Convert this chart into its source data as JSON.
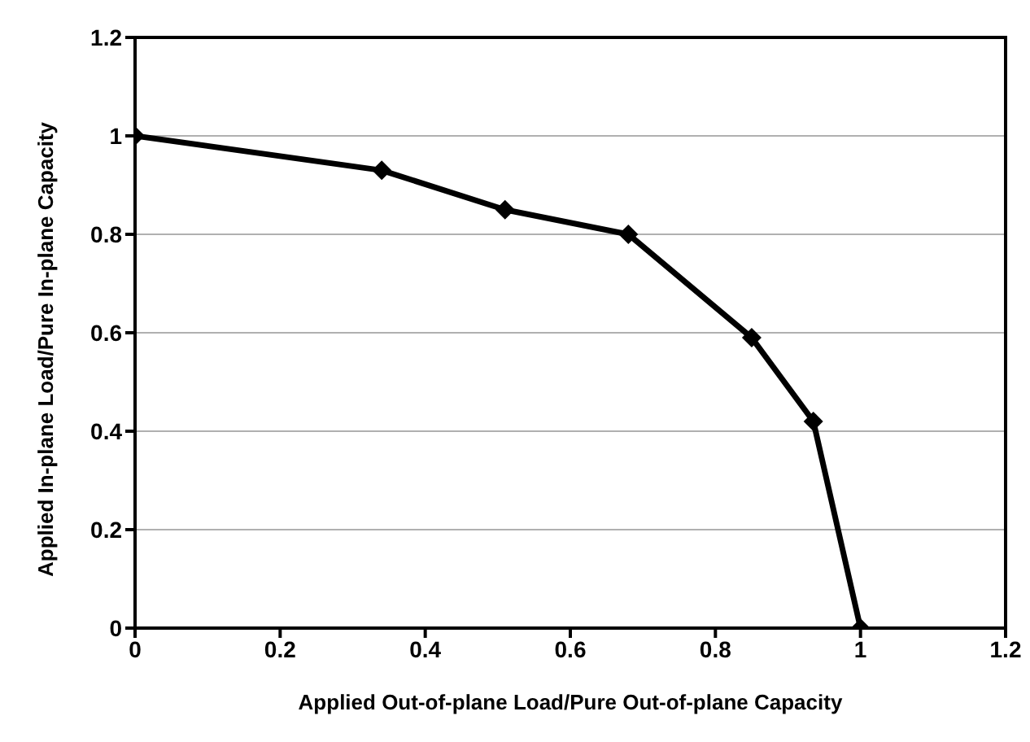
{
  "chart_data": {
    "type": "line",
    "xlabel": "Applied Out-of-plane  Load/Pure Out-of-plane  Capacity",
    "ylabel": "Applied In-plane Load/Pure In-plane Capacity",
    "x": [
      0,
      0.34,
      0.51,
      0.68,
      0.85,
      0.935,
      1
    ],
    "series": [
      {
        "color": "#000000",
        "values": [
          1,
          0.93,
          0.85,
          0.8,
          0.59,
          0.42,
          0
        ]
      }
    ],
    "xlim": [
      0,
      1.2
    ],
    "xticks": [
      0,
      0.2,
      0.4,
      0.6,
      0.8,
      1,
      1.2
    ],
    "ylim": [
      0,
      1.2
    ],
    "yticks": [
      0,
      0.2,
      0.4,
      0.6,
      0.8,
      1,
      1.2
    ],
    "grid": "y",
    "legend": false,
    "marker": "diamond",
    "line_style": "solid"
  }
}
